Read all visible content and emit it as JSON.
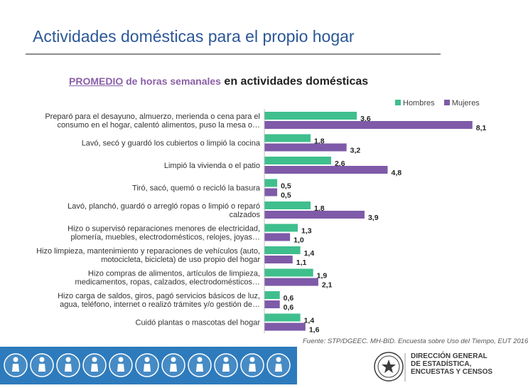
{
  "slide": {
    "title": "Actividades domésticas para el propio hogar"
  },
  "chart_title": {
    "part1": "PROMEDIO",
    "part2": " de horas semanales",
    "part3": " en actividades domésticas"
  },
  "legend": {
    "hombres": "Hombres",
    "mujeres": "Mujeres"
  },
  "source": "Fuente: STP/DGEEC. MH-BID. Encuesta sobre Uso del Tiempo, EUT 2016",
  "institution": {
    "line1": "DIRECCIÓN GENERAL",
    "line2": "DE ESTADÍSTICA,",
    "line3": "ENCUESTAS Y CENSOS"
  },
  "colors": {
    "hombres": "#3fbf8d",
    "mujeres": "#7e5aa8",
    "title": "#2b5797",
    "footer_band": "#2d7bbd"
  },
  "footer_icons": [
    "family-icon",
    "cleaning-icon",
    "sports-icon",
    "person-icon",
    "wheelchair-icon",
    "child-icon",
    "person-icon",
    "care-icon",
    "cooking-icon",
    "elderly-icon",
    "family-icon"
  ],
  "chart_data": {
    "type": "bar",
    "orientation": "horizontal",
    "title": "PROMEDIO de horas semanales en actividades domésticas",
    "categories": [
      [
        "Preparó para el desayuno, almuerzo, merienda o cena para el",
        "consumo en el hogar, calentó alimentos, puso la mesa o…"
      ],
      [
        "Lavó, secó y guardó los cubiertos o limpió la cocina"
      ],
      [
        "Limpió la vivienda o el patio"
      ],
      [
        "Tiró, sacó, quemó o recicló la basura"
      ],
      [
        "Lavó, planchó, guardó o arregló ropas o limpió o reparó",
        "calzados"
      ],
      [
        "Hizo o supervisó reparaciones menores de electricidad,",
        "plomería, muebles, electrodomésticos, relojes, joyas…"
      ],
      [
        "Hizo limpieza, mantenimiento y reparaciones de vehículos (auto,",
        "motocicleta, bicicleta) de uso propio del hogar"
      ],
      [
        "Hizo compras de alimentos, artículos de limpieza,",
        "medicamentos, ropas, calzados, electrodomésticos…"
      ],
      [
        "Hizo carga de saldos, giros, pagó servicios básicos de luz,",
        "agua, teléfono, internet o realizó trámites y/o gestión de…"
      ],
      [
        "Cuidó plantas o mascotas del hogar"
      ]
    ],
    "series": [
      {
        "name": "Hombres",
        "values": [
          3.6,
          1.8,
          2.6,
          0.5,
          1.8,
          1.3,
          1.4,
          1.9,
          0.6,
          1.4
        ],
        "labels": [
          "3,6",
          "1,8",
          "2,6",
          "0,5",
          "1,8",
          "1,3",
          "1,4",
          "1,9",
          "0,6",
          "1,4"
        ]
      },
      {
        "name": "Mujeres",
        "values": [
          8.1,
          3.2,
          4.8,
          0.5,
          3.9,
          1.0,
          1.1,
          2.1,
          0.6,
          1.6
        ],
        "labels": [
          "8,1",
          "3,2",
          "4,8",
          "0,5",
          "3,9",
          "1,0",
          "1,1",
          "2,1",
          "0,6",
          "1,6"
        ]
      }
    ],
    "xlim": [
      0,
      8.3
    ],
    "legend_position": "top-right",
    "grid": false
  }
}
